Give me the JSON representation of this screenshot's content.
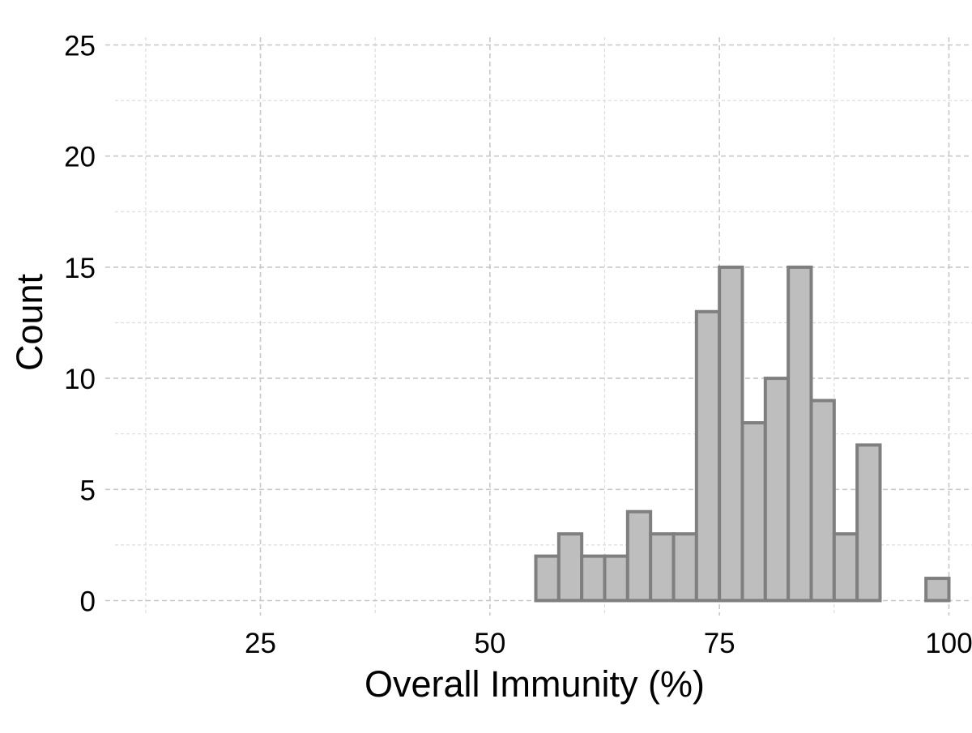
{
  "chart_data": {
    "type": "bar",
    "xlabel": "Overall Immunity (%)",
    "ylabel": "Count",
    "xlim": [
      10,
      100
    ],
    "ylim": [
      -1.35,
      25
    ],
    "x_ticks": [
      25,
      50,
      75,
      100
    ],
    "x_minor_ticks": [
      12.5,
      37.5,
      62.5,
      87.5
    ],
    "y_ticks": [
      0,
      5,
      10,
      15,
      20,
      25
    ],
    "y_minor_ticks": [
      2.5,
      7.5,
      12.5,
      17.5,
      22.5
    ],
    "grid": true,
    "bin_width": 2.5,
    "bins": [
      {
        "start": 10.0,
        "count": 0
      },
      {
        "start": 12.5,
        "count": 0
      },
      {
        "start": 15.0,
        "count": 0
      },
      {
        "start": 17.5,
        "count": 0
      },
      {
        "start": 20.0,
        "count": 0
      },
      {
        "start": 22.5,
        "count": 0
      },
      {
        "start": 25.0,
        "count": 0
      },
      {
        "start": 27.5,
        "count": 0
      },
      {
        "start": 30.0,
        "count": 0
      },
      {
        "start": 32.5,
        "count": 0
      },
      {
        "start": 35.0,
        "count": 0
      },
      {
        "start": 37.5,
        "count": 0
      },
      {
        "start": 40.0,
        "count": 0
      },
      {
        "start": 42.5,
        "count": 0
      },
      {
        "start": 45.0,
        "count": 0
      },
      {
        "start": 47.5,
        "count": 0
      },
      {
        "start": 50.0,
        "count": 0
      },
      {
        "start": 52.5,
        "count": 0
      },
      {
        "start": 55.0,
        "count": 2
      },
      {
        "start": 57.5,
        "count": 3
      },
      {
        "start": 60.0,
        "count": 2
      },
      {
        "start": 62.5,
        "count": 2
      },
      {
        "start": 65.0,
        "count": 4
      },
      {
        "start": 67.5,
        "count": 3
      },
      {
        "start": 70.0,
        "count": 3
      },
      {
        "start": 72.5,
        "count": 13
      },
      {
        "start": 75.0,
        "count": 15
      },
      {
        "start": 77.5,
        "count": 8
      },
      {
        "start": 80.0,
        "count": 10
      },
      {
        "start": 82.5,
        "count": 15
      },
      {
        "start": 85.0,
        "count": 9
      },
      {
        "start": 87.5,
        "count": 3
      },
      {
        "start": 90.0,
        "count": 7
      },
      {
        "start": 92.5,
        "count": 0
      },
      {
        "start": 95.0,
        "count": 0
      },
      {
        "start": 97.5,
        "count": 1
      }
    ],
    "colors": {
      "bar_fill": "#bebebe",
      "bar_stroke": "#7f7f7f",
      "grid_major": "#c8c8c8",
      "grid_minor": "#dcdcdc"
    }
  }
}
